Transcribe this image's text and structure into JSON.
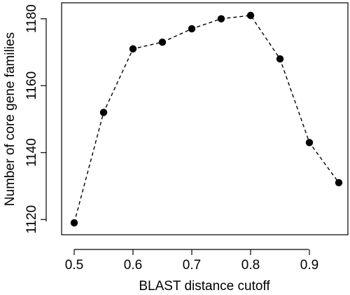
{
  "chart_data": {
    "type": "line",
    "title": "",
    "xlabel": "BLAST distance cutoff",
    "ylabel": "Number of core gene families",
    "xlim": [
      0.5,
      0.95
    ],
    "ylim": [
      1119,
      1181
    ],
    "x_ticks": [
      "0.5",
      "0.6",
      "0.7",
      "0.8",
      "0.9"
    ],
    "y_ticks": [
      "1120",
      "1140",
      "1160",
      "1180"
    ],
    "grid": false,
    "legend": "none",
    "line_style": "dashed",
    "marker": "filled-circle",
    "color": "#000000",
    "series": [
      {
        "x": [
          0.5,
          0.55,
          0.6,
          0.65,
          0.7,
          0.75,
          0.8,
          0.85,
          0.9,
          0.95
        ],
        "y": [
          1119,
          1152,
          1171,
          1173,
          1177,
          1180,
          1181,
          1168,
          1143,
          1131
        ]
      }
    ]
  }
}
